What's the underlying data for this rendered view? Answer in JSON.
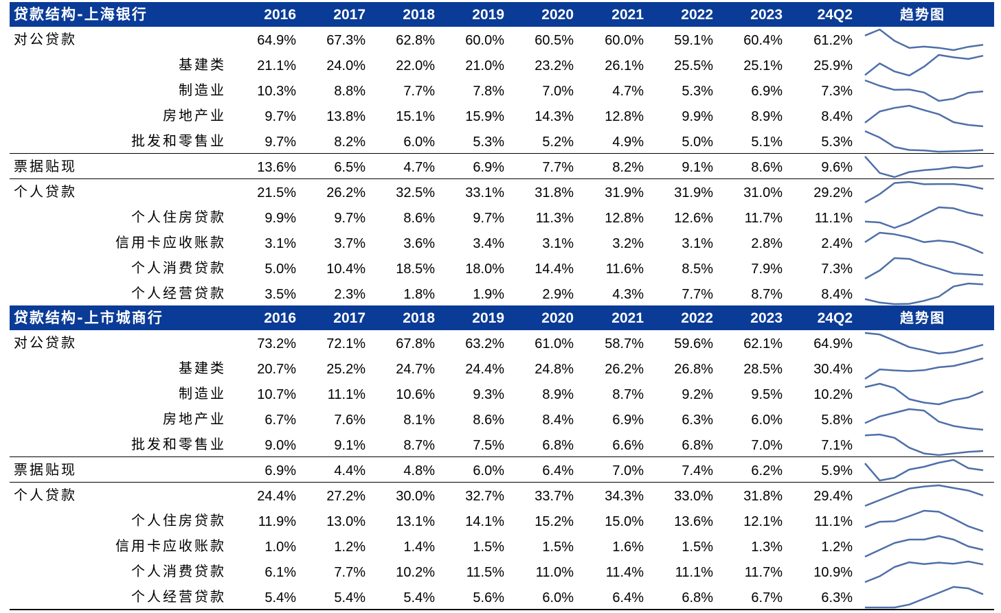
{
  "line_color": "#4e6fa8",
  "header_color": "#0a3b97",
  "years": [
    "2016",
    "2017",
    "2018",
    "2019",
    "2020",
    "2021",
    "2022",
    "2023",
    "24Q2"
  ],
  "trend_label": "趋势图",
  "tables": [
    {
      "title": "贷款结构-上海银行",
      "rows": [
        {
          "label": "对公贷款",
          "level": "main",
          "values": [
            "64.9%",
            "67.3%",
            "62.8%",
            "60.0%",
            "60.5%",
            "60.0%",
            "59.1%",
            "60.4%",
            "61.2%"
          ]
        },
        {
          "label": "基建类",
          "level": "sub",
          "values": [
            "21.1%",
            "24.0%",
            "22.0%",
            "21.0%",
            "23.2%",
            "26.1%",
            "25.5%",
            "25.1%",
            "25.9%"
          ]
        },
        {
          "label": "制造业",
          "level": "sub",
          "values": [
            "10.3%",
            "8.8%",
            "7.7%",
            "7.8%",
            "7.0%",
            "4.7%",
            "5.3%",
            "6.9%",
            "7.3%"
          ]
        },
        {
          "label": "房地产业",
          "level": "sub",
          "values": [
            "9.7%",
            "13.8%",
            "15.1%",
            "15.9%",
            "14.3%",
            "12.8%",
            "9.9%",
            "8.9%",
            "8.4%"
          ]
        },
        {
          "label": "批发和零售业",
          "level": "sub",
          "values": [
            "9.7%",
            "8.2%",
            "6.0%",
            "5.3%",
            "5.2%",
            "4.9%",
            "5.0%",
            "5.1%",
            "5.3%"
          ]
        },
        {
          "label": "票据贴现",
          "level": "main",
          "values": [
            "13.6%",
            "6.5%",
            "4.7%",
            "6.9%",
            "7.7%",
            "8.2%",
            "9.1%",
            "8.6%",
            "9.6%"
          ]
        },
        {
          "label": "个人贷款",
          "level": "main",
          "values": [
            "21.5%",
            "26.2%",
            "32.5%",
            "33.1%",
            "31.8%",
            "31.9%",
            "31.9%",
            "31.0%",
            "29.2%"
          ]
        },
        {
          "label": "个人住房贷款",
          "level": "sub",
          "values": [
            "9.9%",
            "9.7%",
            "8.6%",
            "9.7%",
            "11.3%",
            "12.8%",
            "12.6%",
            "11.7%",
            "11.1%"
          ]
        },
        {
          "label": "信用卡应收账款",
          "level": "sub",
          "values": [
            "3.1%",
            "3.7%",
            "3.6%",
            "3.4%",
            "3.1%",
            "3.2%",
            "3.1%",
            "2.8%",
            "2.4%"
          ]
        },
        {
          "label": "个人消费贷款",
          "level": "sub",
          "values": [
            "5.0%",
            "10.4%",
            "18.5%",
            "18.0%",
            "14.4%",
            "11.6%",
            "8.5%",
            "7.9%",
            "7.3%"
          ]
        },
        {
          "label": "个人经营贷款",
          "level": "sub",
          "values": [
            "3.5%",
            "2.3%",
            "1.8%",
            "1.9%",
            "2.9%",
            "4.3%",
            "7.7%",
            "8.7%",
            "8.4%"
          ]
        }
      ]
    },
    {
      "title": "贷款结构-上市城商行",
      "rows": [
        {
          "label": "对公贷款",
          "level": "main",
          "values": [
            "73.2%",
            "72.1%",
            "67.8%",
            "63.2%",
            "61.0%",
            "58.7%",
            "59.6%",
            "62.1%",
            "64.9%"
          ]
        },
        {
          "label": "基建类",
          "level": "sub",
          "values": [
            "20.7%",
            "25.2%",
            "24.7%",
            "24.4%",
            "24.8%",
            "26.2%",
            "26.8%",
            "28.5%",
            "30.4%"
          ]
        },
        {
          "label": "制造业",
          "level": "sub",
          "values": [
            "10.7%",
            "11.1%",
            "10.6%",
            "9.3%",
            "8.9%",
            "8.7%",
            "9.2%",
            "9.5%",
            "10.2%"
          ]
        },
        {
          "label": "房地产业",
          "level": "sub",
          "values": [
            "6.7%",
            "7.6%",
            "8.1%",
            "8.6%",
            "8.4%",
            "6.9%",
            "6.3%",
            "6.0%",
            "5.8%"
          ]
        },
        {
          "label": "批发和零售业",
          "level": "sub",
          "values": [
            "9.0%",
            "9.1%",
            "8.7%",
            "7.5%",
            "6.8%",
            "6.6%",
            "6.8%",
            "7.0%",
            "7.1%"
          ]
        },
        {
          "label": "票据贴现",
          "level": "main",
          "values": [
            "6.9%",
            "4.4%",
            "4.8%",
            "6.0%",
            "6.4%",
            "7.0%",
            "7.4%",
            "6.2%",
            "5.9%"
          ]
        },
        {
          "label": "个人贷款",
          "level": "main",
          "values": [
            "24.4%",
            "27.2%",
            "30.0%",
            "32.7%",
            "33.7%",
            "34.3%",
            "33.0%",
            "31.8%",
            "29.4%"
          ]
        },
        {
          "label": "个人住房贷款",
          "level": "sub",
          "values": [
            "11.9%",
            "13.0%",
            "13.1%",
            "14.1%",
            "15.2%",
            "15.0%",
            "13.6%",
            "12.1%",
            "11.1%"
          ]
        },
        {
          "label": "信用卡应收账款",
          "level": "sub",
          "values": [
            "1.0%",
            "1.2%",
            "1.4%",
            "1.5%",
            "1.5%",
            "1.6%",
            "1.5%",
            "1.3%",
            "1.2%"
          ]
        },
        {
          "label": "个人消费贷款",
          "level": "sub",
          "values": [
            "6.1%",
            "7.7%",
            "10.2%",
            "11.5%",
            "11.0%",
            "11.4%",
            "11.1%",
            "11.7%",
            "10.9%"
          ]
        },
        {
          "label": "个人经营贷款",
          "level": "sub",
          "values": [
            "5.4%",
            "5.4%",
            "5.4%",
            "5.6%",
            "6.0%",
            "6.4%",
            "6.8%",
            "6.7%",
            "6.3%"
          ]
        }
      ]
    }
  ]
}
